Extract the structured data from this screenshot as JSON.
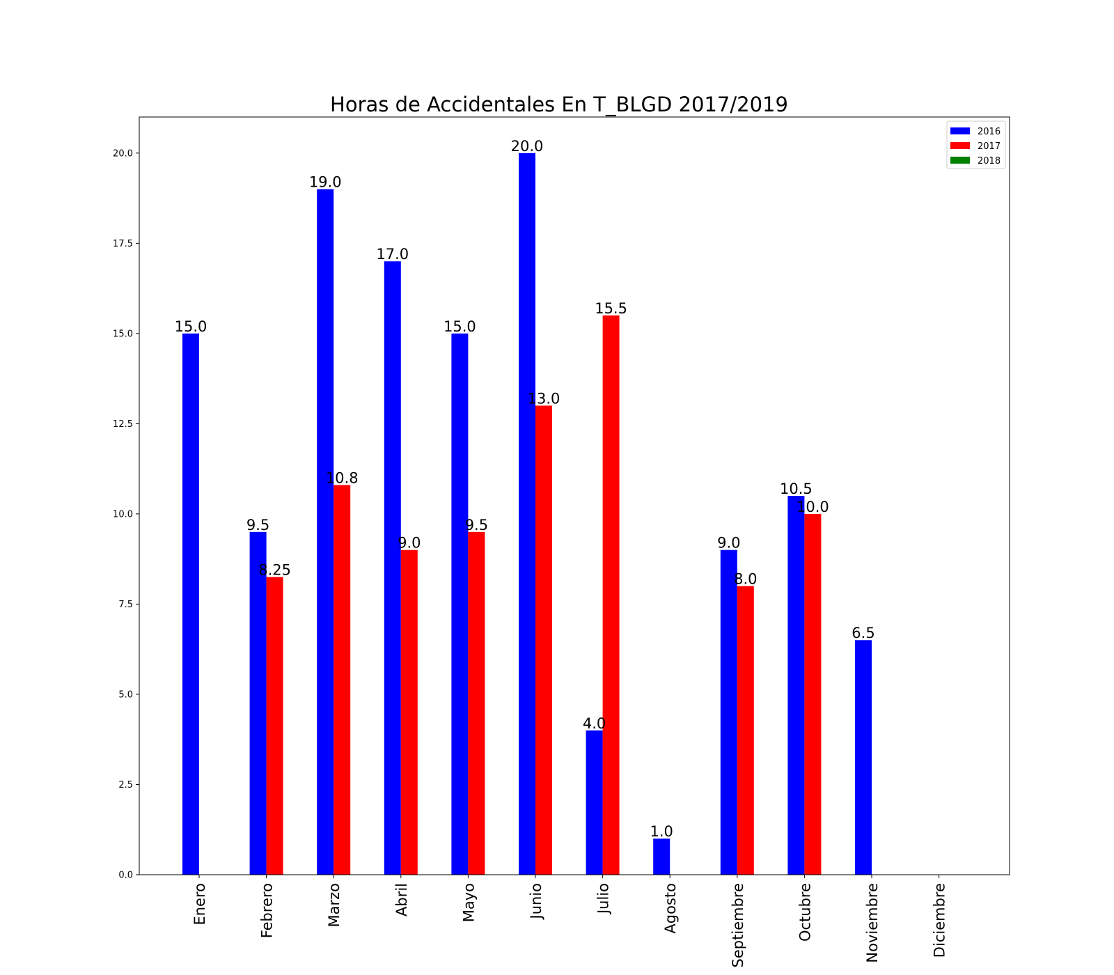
{
  "chart_data": {
    "type": "bar",
    "title": "Horas de Accidentales En T_BLGD 2017/2019",
    "xlabel": "",
    "ylabel": "",
    "categories": [
      "Enero",
      "Febrero",
      "Marzo",
      "Abril",
      "Mayo",
      "Junio",
      "Julio",
      "Agosto",
      "Septiembre",
      "Octubre",
      "Noviembre",
      "Diciembre"
    ],
    "series": [
      {
        "name": "2016",
        "color": "#0000ff",
        "values": [
          15.0,
          9.5,
          19.0,
          17.0,
          15.0,
          20.0,
          4.0,
          1.0,
          9.0,
          10.5,
          6.5,
          0
        ],
        "labels": [
          "15.0",
          "9.5",
          "19.0",
          "17.0",
          "15.0",
          "20.0",
          "4.0",
          "1.0",
          "9.0",
          "10.5",
          "6.5",
          ""
        ]
      },
      {
        "name": "2017",
        "color": "#ff0000",
        "values": [
          0,
          8.25,
          10.8,
          9.0,
          9.5,
          13.0,
          15.5,
          0,
          8.0,
          10.0,
          0,
          0
        ],
        "labels": [
          "",
          "8.25",
          "10.8",
          "9.0",
          "9.5",
          "13.0",
          "15.5",
          "",
          "8.0",
          "10.0",
          "",
          ""
        ]
      },
      {
        "name": "2018",
        "color": "#008000",
        "values": [
          0,
          0,
          0,
          0,
          0,
          0,
          0,
          0,
          0,
          0,
          0,
          0
        ],
        "labels": [
          "",
          "",
          "",
          "",
          "",
          "",
          "",
          "",
          "",
          "",
          "",
          ""
        ]
      }
    ],
    "yticks": [
      "0.0",
      "2.5",
      "5.0",
      "7.5",
      "10.0",
      "12.5",
      "15.0",
      "17.5",
      "20.0"
    ],
    "ylim": [
      0,
      21
    ],
    "grid": false,
    "legend_position": "top-right"
  }
}
